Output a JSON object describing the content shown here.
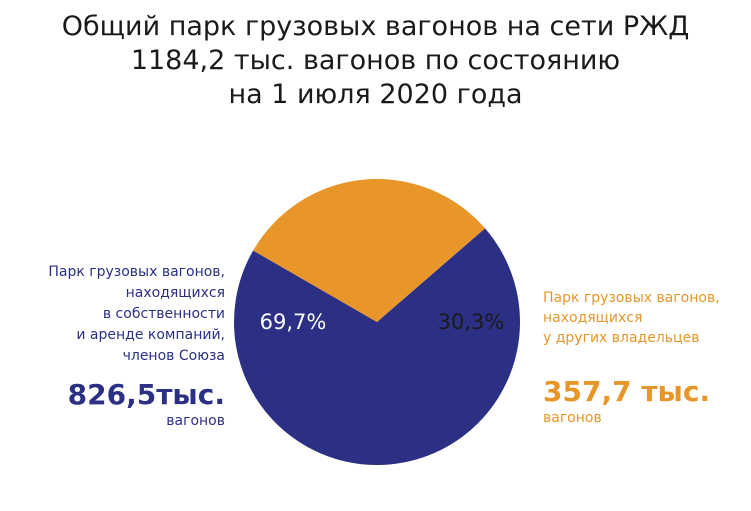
{
  "title": {
    "line1": "Общий парк грузовых вагонов на сети РЖД",
    "line2": "1184,2 тыс. вагонов по состоянию",
    "line3": "на 1 июля 2020 года"
  },
  "chart_data": {
    "type": "pie",
    "title": "Общий парк грузовых вагонов на сети РЖД 1184,2 тыс. вагонов по состоянию на 1 июля 2020 года",
    "slices": [
      {
        "label": "Парк грузовых вагонов, находящихся в собственности и аренде компаний, членов Союза",
        "percent": 69.7,
        "percent_label": "69,7%",
        "value": 826.5,
        "value_label": "826,5тыс.",
        "unit": "вагонов",
        "color": "#2b3085"
      },
      {
        "label": "Парк грузовых вагонов, находящихся у других владельцев",
        "percent": 30.3,
        "percent_label": "30,3%",
        "value": 357.7,
        "value_label": "357,7 тыс.",
        "unit": "вагонов",
        "color": "#e8962a"
      }
    ]
  },
  "left_annotation": {
    "lines": [
      "Парк грузовых вагонов,",
      "находящихся",
      "в собственности",
      "и аренде компаний,",
      "членов Союза"
    ],
    "value": "826,5тыс.",
    "unit": "вагонов"
  },
  "right_annotation": {
    "lines": [
      "Парк грузовых вагонов,",
      "находящихся",
      "у других владельцев"
    ],
    "value": "357,7 тыс.",
    "unit": "вагонов"
  },
  "colors": {
    "union": "#2b3085",
    "other": "#e8962a",
    "title": "#1a1a1a",
    "slice_label_on_blue": "#ffffff",
    "slice_label_on_orange": "#1a1a1a"
  }
}
